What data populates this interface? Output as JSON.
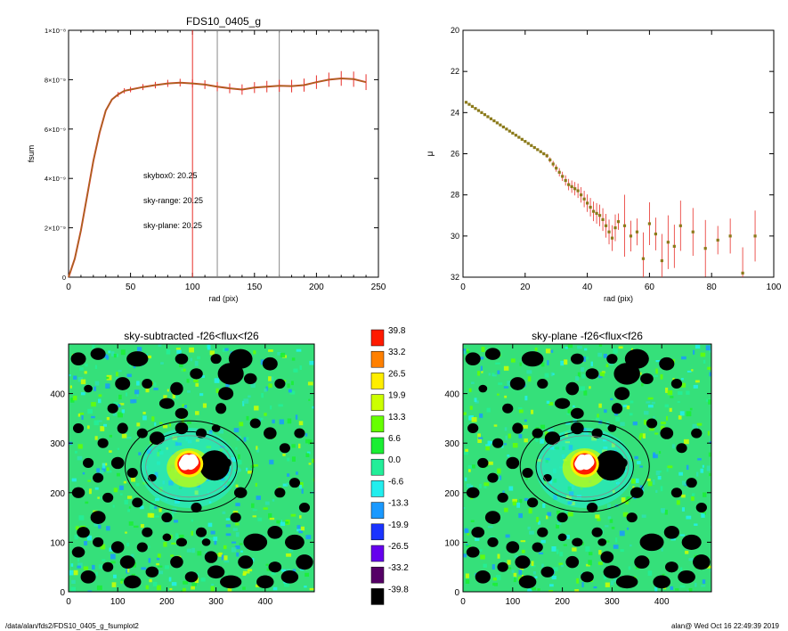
{
  "chart_data": [
    {
      "type": "line",
      "title": "FDS10_0405_g",
      "xlabel": "rad (pix)",
      "ylabel": "fsum",
      "xlim": [
        0,
        250
      ],
      "ylim": [
        0,
        1e-08
      ],
      "xticks": [
        "0",
        "50",
        "100",
        "150",
        "200",
        "250"
      ],
      "yticks": [
        "0",
        "2×10⁻⁹",
        "4×10⁻⁹",
        "6×10⁻⁹",
        "8×10⁻⁹",
        "1×10⁻⁸"
      ],
      "vlines": [
        {
          "x": 100,
          "color": "#e8302a"
        },
        {
          "x": 120,
          "color": "#8a8a8a"
        },
        {
          "x": 170,
          "color": "#8a8a8a"
        }
      ],
      "annotations": [
        {
          "text": "skybox0: 20.25",
          "color": "#000000"
        },
        {
          "text": "sky-range: 20.25",
          "color": "#e8302a"
        },
        {
          "text": "sky-plane: 20.25",
          "color": "#22cc22"
        }
      ],
      "series": [
        {
          "color": "#8b7a1a",
          "x": [
            0,
            5,
            10,
            15,
            20,
            25,
            30,
            35,
            40,
            45,
            50,
            60,
            70,
            80,
            90,
            100,
            110,
            120,
            130,
            140,
            150,
            160,
            170,
            180,
            190,
            200,
            210,
            220,
            230,
            240
          ],
          "y": [
            0,
            7.5e-10,
            1.9e-09,
            3.3e-09,
            4.7e-09,
            5.85e-09,
            6.75e-09,
            7.2e-09,
            7.4e-09,
            7.55e-09,
            7.6e-09,
            7.7e-09,
            7.78e-09,
            7.85e-09,
            7.88e-09,
            7.85e-09,
            7.8e-09,
            7.72e-09,
            7.65e-09,
            7.6e-09,
            7.68e-09,
            7.72e-09,
            7.75e-09,
            7.74e-09,
            7.78e-09,
            7.9e-09,
            8e-09,
            8.05e-09,
            8.02e-09,
            7.9e-09
          ]
        }
      ]
    },
    {
      "type": "scatter",
      "xlabel": "rad (pix)",
      "ylabel": "μ",
      "xlim": [
        0,
        100
      ],
      "ylim": [
        32,
        20
      ],
      "xticks": [
        "0",
        "20",
        "40",
        "60",
        "80",
        "100"
      ],
      "yticks": [
        "20",
        "22",
        "24",
        "26",
        "28",
        "30",
        "32"
      ],
      "series": [
        {
          "color": "#8b7a1a",
          "x": [
            1,
            2,
            3,
            4,
            5,
            6,
            7,
            8,
            9,
            10,
            11,
            12,
            13,
            14,
            15,
            16,
            17,
            18,
            19,
            20,
            21,
            22,
            23,
            24,
            25,
            26,
            27,
            28,
            29,
            30,
            31,
            32,
            33,
            34,
            35,
            36,
            37,
            38,
            39,
            40,
            41,
            42,
            43,
            44,
            45,
            46,
            47,
            48,
            49,
            50,
            52,
            54,
            56,
            58,
            60,
            62,
            64,
            66,
            68,
            70,
            74,
            78,
            82,
            86,
            90,
            94
          ],
          "y": [
            23.5,
            23.6,
            23.7,
            23.8,
            23.9,
            24.0,
            24.1,
            24.2,
            24.3,
            24.4,
            24.5,
            24.6,
            24.7,
            24.8,
            24.9,
            25.0,
            25.1,
            25.2,
            25.3,
            25.4,
            25.5,
            25.6,
            25.7,
            25.8,
            25.9,
            26.0,
            26.1,
            26.3,
            26.5,
            26.7,
            26.9,
            27.1,
            27.3,
            27.5,
            27.6,
            27.7,
            27.8,
            28.0,
            28.2,
            28.4,
            28.6,
            28.8,
            28.9,
            29.0,
            29.2,
            29.5,
            29.8,
            30.1,
            29.6,
            29.3,
            29.5,
            30.0,
            29.8,
            31.1,
            29.4,
            29.9,
            31.2,
            30.3,
            30.5,
            29.5,
            29.8,
            30.6,
            30.2,
            30.0,
            31.8,
            30.0
          ]
        }
      ]
    },
    {
      "type": "heatmap",
      "title": "sky-subtracted -f26<flux<f26",
      "xlim": [
        0,
        500
      ],
      "ylim": [
        0,
        500
      ],
      "xticks": [
        "0",
        "100",
        "200",
        "300",
        "400"
      ],
      "yticks": [
        "0",
        "100",
        "200",
        "300",
        "400"
      ]
    },
    {
      "type": "heatmap",
      "title": "sky-plane -f26<flux<f26",
      "xlim": [
        0,
        500
      ],
      "ylim": [
        0,
        500
      ],
      "xticks": [
        "0",
        "100",
        "200",
        "300",
        "400"
      ],
      "yticks": [
        "0",
        "100",
        "200",
        "300",
        "400"
      ]
    }
  ],
  "colorbar": [
    {
      "label": "39.8",
      "color": "#ff1a00"
    },
    {
      "label": "33.2",
      "color": "#ff8000"
    },
    {
      "label": "26.5",
      "color": "#ffee00"
    },
    {
      "label": "19.9",
      "color": "#ccff00"
    },
    {
      "label": "13.3",
      "color": "#66ff00"
    },
    {
      "label": "6.6",
      "color": "#1aee33"
    },
    {
      "label": "0.0",
      "color": "#22ee99"
    },
    {
      "label": "-6.6",
      "color": "#22eeee"
    },
    {
      "label": "-13.3",
      "color": "#1a99ff"
    },
    {
      "label": "-19.9",
      "color": "#1a33ff"
    },
    {
      "label": "-26.5",
      "color": "#6600ee"
    },
    {
      "label": "-33.2",
      "color": "#550066"
    },
    {
      "label": "-39.8",
      "color": "#000000"
    }
  ],
  "footer": {
    "left": "/data/alan/fds2/FDS10_0405_g_fsumplot2",
    "right": "alan@  Wed Oct 16 22:49:39 2019"
  }
}
